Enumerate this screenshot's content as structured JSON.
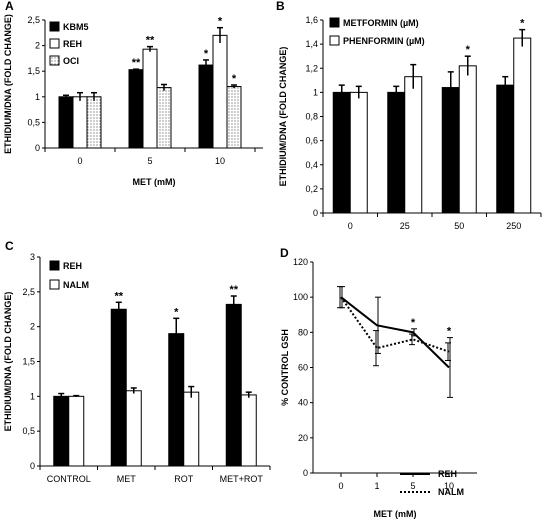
{
  "chart_data": [
    {
      "panel": "A",
      "type": "bar",
      "categories": [
        "0",
        "5",
        "10"
      ],
      "xlabel": "MET (mM)",
      "ylabel": "ETHIDIUM/DNA (FOLD CHANGE)",
      "ylim": [
        0,
        2.5
      ],
      "yticks": [
        "0",
        "0,5",
        "1",
        "1,5",
        "2",
        "2,5"
      ],
      "legend": "top-left",
      "series": [
        {
          "name": "KBM5",
          "style": "solid",
          "values": [
            1.0,
            1.53,
            1.62
          ],
          "errors": [
            0.03,
            0.01,
            0.1
          ],
          "sig": [
            "",
            "**",
            "*"
          ]
        },
        {
          "name": "REH",
          "style": "open",
          "values": [
            1.0,
            1.93,
            2.2
          ],
          "errors": [
            0.08,
            0.05,
            0.15
          ],
          "sig": [
            "",
            "**",
            "*"
          ]
        },
        {
          "name": "OCI",
          "style": "dotted",
          "values": [
            1.0,
            1.18,
            1.2
          ],
          "errors": [
            0.08,
            0.06,
            0.03
          ],
          "sig": [
            "",
            "",
            "*"
          ]
        }
      ]
    },
    {
      "panel": "B",
      "type": "bar",
      "categories": [
        "0",
        "25",
        "50",
        "250"
      ],
      "xlabel": "",
      "ylabel": "ETHIDIUM/DNA (FOLD CHANGE)",
      "ylim": [
        0,
        1.6
      ],
      "yticks": [
        "0",
        "0,2",
        "0,4",
        "0,6",
        "0,8",
        "1",
        "1,2",
        "1,4",
        "1,6"
      ],
      "legend": "top-left",
      "series": [
        {
          "name": "METFORMIN (µM)",
          "style": "solid",
          "values": [
            1.0,
            1.0,
            1.04,
            1.06
          ],
          "errors": [
            0.06,
            0.05,
            0.13,
            0.07
          ],
          "sig": [
            "",
            "",
            "",
            ""
          ]
        },
        {
          "name": "PHENFORMIN (µM)",
          "style": "open",
          "values": [
            1.0,
            1.13,
            1.22,
            1.45
          ],
          "errors": [
            0.05,
            0.1,
            0.08,
            0.07
          ],
          "sig": [
            "",
            "",
            "*",
            "*"
          ]
        }
      ]
    },
    {
      "panel": "C",
      "type": "bar",
      "categories": [
        "CONTROL",
        "MET",
        "ROT",
        "MET+ROT"
      ],
      "xlabel": "",
      "ylabel": "ETHIDIUM/DNA (FOLD CHANGE)",
      "ylim": [
        0,
        3
      ],
      "yticks": [
        "0",
        "0,5",
        "1",
        "1,5",
        "2",
        "2,5",
        "3"
      ],
      "legend": "top-left",
      "series": [
        {
          "name": "REH",
          "style": "solid",
          "values": [
            1.0,
            2.25,
            1.9,
            2.32
          ],
          "errors": [
            0.04,
            0.1,
            0.22,
            0.12
          ],
          "sig": [
            "",
            "**",
            "*",
            "**"
          ]
        },
        {
          "name": "NALM",
          "style": "open",
          "values": [
            1.0,
            1.08,
            1.06,
            1.02
          ],
          "errors": [
            0.01,
            0.04,
            0.08,
            0.04
          ],
          "sig": [
            "",
            "",
            "",
            ""
          ]
        }
      ]
    },
    {
      "panel": "D",
      "type": "line",
      "x": [
        "0",
        "1",
        "5",
        "10"
      ],
      "xlabel": "MET (mM)",
      "ylabel": "% CONTROL GSH",
      "ylim": [
        0,
        120
      ],
      "yticks": [
        "0",
        "20",
        "40",
        "60",
        "80",
        "100",
        "120"
      ],
      "legend": "bottom-right",
      "series": [
        {
          "name": "REH",
          "style": "solid",
          "values": [
            100,
            84,
            80,
            60
          ],
          "errors": [
            6,
            16,
            2,
            17
          ],
          "sig": [
            "",
            "",
            "*",
            "*"
          ]
        },
        {
          "name": "NALM",
          "style": "dotted",
          "values": [
            100,
            71,
            76,
            69
          ],
          "errors": [
            6,
            10,
            3,
            5
          ],
          "sig": [
            "",
            "",
            "",
            ""
          ]
        }
      ]
    }
  ]
}
